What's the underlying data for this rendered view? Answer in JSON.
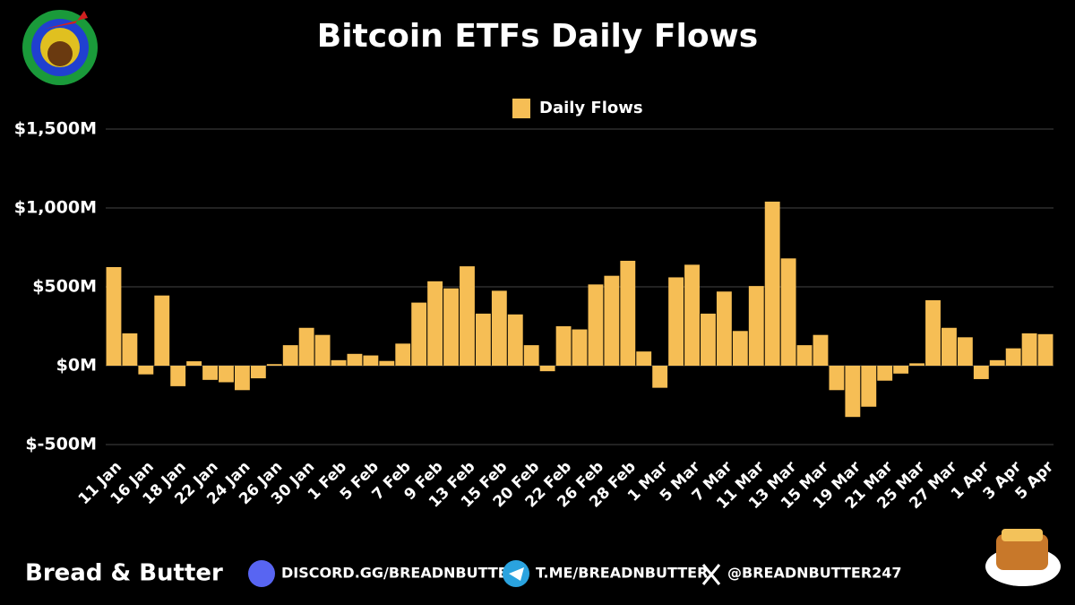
{
  "chart_data": {
    "type": "bar",
    "title": "Bitcoin ETFs Daily Flows",
    "categories": [
      "11 Jan",
      null,
      "16 Jan",
      null,
      "18 Jan",
      null,
      "22 Jan",
      null,
      "24 Jan",
      null,
      "26 Jan",
      null,
      "30 Jan",
      null,
      "1 Feb",
      null,
      "5 Feb",
      null,
      "7 Feb",
      null,
      "9 Feb",
      null,
      "13 Feb",
      null,
      "15 Feb",
      null,
      "20 Feb",
      null,
      "22 Feb",
      null,
      "26 Feb",
      null,
      "28 Feb",
      null,
      "1 Mar",
      null,
      "5 Mar",
      null,
      "7 Mar",
      null,
      "11 Mar",
      null,
      "13 Mar",
      null,
      "15 Mar",
      null,
      "19 Mar",
      null,
      "21 Mar",
      null,
      "25 Mar",
      null,
      "27 Mar",
      null,
      "1 Apr",
      null,
      "3 Apr",
      null,
      "5 Apr"
    ],
    "series": [
      {
        "name": "Daily Flows",
        "color": "#f6be55",
        "values": [
          625,
          205,
          -55,
          445,
          -130,
          28,
          -90,
          -105,
          -155,
          -80,
          10,
          130,
          240,
          195,
          35,
          75,
          65,
          30,
          140,
          400,
          535,
          490,
          630,
          330,
          475,
          325,
          130,
          -35,
          250,
          230,
          515,
          570,
          665,
          90,
          -140,
          560,
          640,
          330,
          470,
          220,
          505,
          1040,
          680,
          130,
          195,
          -155,
          -325,
          -260,
          -95,
          -50,
          15,
          415,
          240,
          180,
          -85,
          35,
          110,
          205,
          200
        ]
      }
    ],
    "ylim": [
      -500,
      1500
    ],
    "yticks": [
      {
        "value": -500,
        "label": "$-500M"
      },
      {
        "value": 0,
        "label": "$0M"
      },
      {
        "value": 500,
        "label": "$500M"
      },
      {
        "value": 1000,
        "label": "$1,000M"
      },
      {
        "value": 1500,
        "label": "$1,500M"
      }
    ],
    "grid": true,
    "legend": "top"
  },
  "footer": {
    "brand": "Bread & Butter",
    "discord": "DISCORD.GG/BREADNBUTTER",
    "telegram": "T.ME/BREADNBUTTER",
    "x": "@BREADNBUTTER247"
  }
}
